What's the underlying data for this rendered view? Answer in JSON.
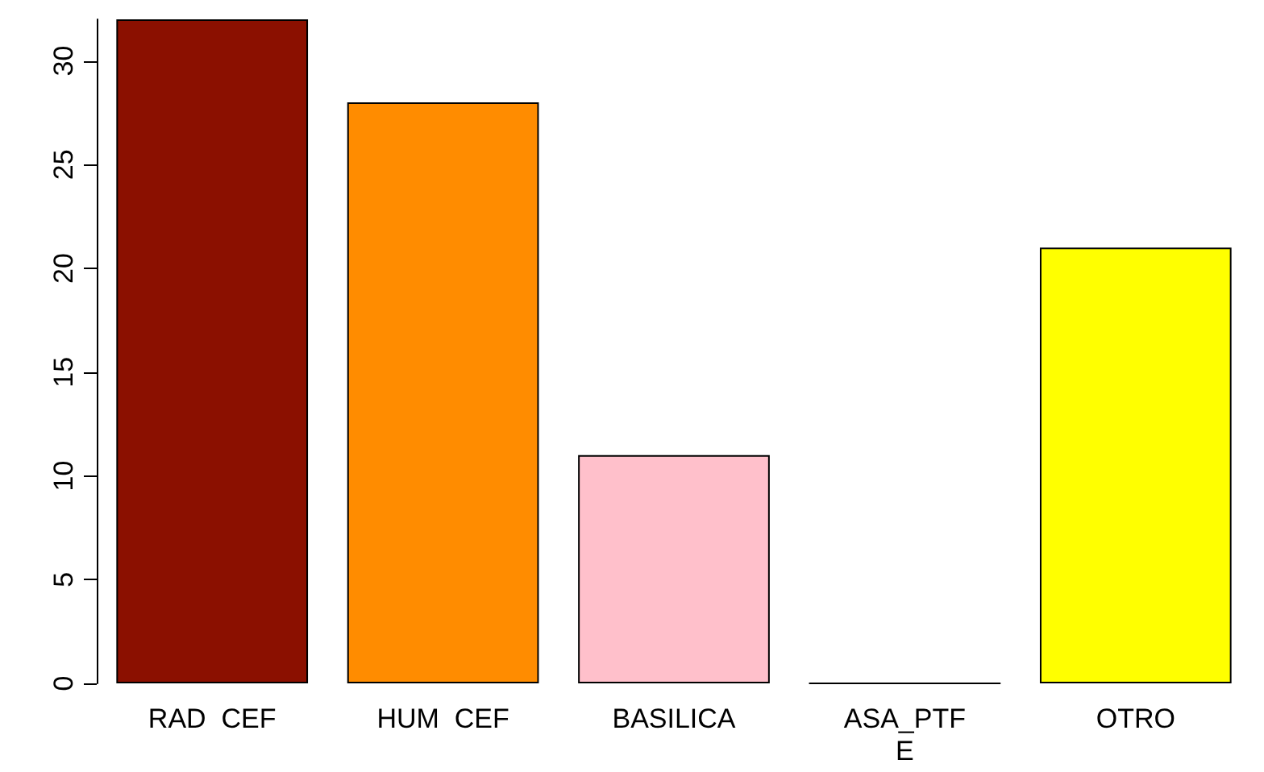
{
  "chart_data": {
    "type": "bar",
    "categories": [
      "RAD  CEF",
      "HUM  CEF",
      "BASILICA",
      "ASA_PTF\nE",
      "OTRO"
    ],
    "values": [
      32,
      28,
      11,
      0,
      21
    ],
    "colors": [
      "#8b1000",
      "#ff8c00",
      "#ffc0cb",
      "#000000",
      "#ffff00"
    ],
    "ylim": [
      0,
      32
    ],
    "yticks": [
      0,
      5,
      10,
      15,
      20,
      25,
      30
    ],
    "grid": false
  }
}
